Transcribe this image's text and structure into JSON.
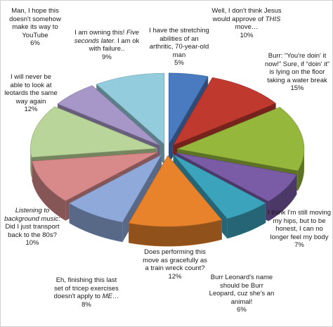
{
  "chart_data": {
    "type": "pie",
    "style": "exploded 3d",
    "slices": [
      {
        "label": "I have the stretching abilities of an arthritic, 70-year-old man",
        "value": 5,
        "pct": "5%",
        "color": "#4a7bc0"
      },
      {
        "label": "Well, I don't think Jesus would approve of THIS move…",
        "value": 10,
        "pct": "10%",
        "color": "#c0392f"
      },
      {
        "label": "Burr: “You're doin' it now!” Sure, if “doin' it” is lying on the floor taking a water break",
        "value": 15,
        "pct": "15%",
        "color": "#95b83c"
      },
      {
        "label": "I think I'm still moving my hips, but to be honest, I can no longer feel my body",
        "value": 7,
        "pct": "7%",
        "color": "#7a5ba6"
      },
      {
        "label": "Burr Leonard's name should be Burr Leopard, cuz she's an animal!",
        "value": 6,
        "pct": "6%",
        "color": "#3ca3bd"
      },
      {
        "label": "Does performing this move as gracefully as a train wreck count?",
        "value": 12,
        "pct": "12%",
        "color": "#e8832c"
      },
      {
        "label": "Eh, finishing this last set of tricep exercises doesn't apply to ME…",
        "value": 8,
        "pct": "8%",
        "color": "#8ea9da"
      },
      {
        "label": "Listening to background music: Did I just transport back to the 80s?",
        "value": 10,
        "pct": "10%",
        "color": "#d8898a"
      },
      {
        "label": "I will never be able to look at leotards the same way again",
        "value": 12,
        "pct": "12%",
        "color": "#bad59a"
      },
      {
        "label": "Man, I hope this doesn't somehow make its way to YouTube",
        "value": 6,
        "pct": "6%",
        "color": "#a697c8"
      },
      {
        "label": "I am owning this! Five seconds later. I am ok with failure..",
        "value": 9,
        "pct": "9%",
        "color": "#93ccdc"
      }
    ]
  },
  "labels": {
    "s0": {
      "a": "I have the stretching abilities of an arthritic, 70-year-old man",
      "pct": "5%"
    },
    "s1": {
      "a": "Well, I don't think Jesus would approve of ",
      "em": "THIS",
      "b": " move…",
      "pct": "10%"
    },
    "s2": {
      "a": "Burr: “You're doin' it now!” Sure, if “doin' it” is lying on the floor taking a water break",
      "pct": "15%"
    },
    "s3": {
      "a": "I think I'm still moving my hips, but to be honest, I can no longer feel my body",
      "pct": "7%"
    },
    "s4": {
      "a": "Burr Leonard's name should be Burr Leopard, cuz she's an animal!",
      "pct": "6%"
    },
    "s5": {
      "a": "Does performing this move as gracefully as a train wreck count?",
      "pct": "12%"
    },
    "s6": {
      "a": "Eh, finishing this last set of tricep exercises doesn't apply to ",
      "em": "ME",
      "b": "…",
      "pct": "8%"
    },
    "s7": {
      "em": "Listening to background music",
      "b": ": Did I just transport back to the 80s?",
      "pct": "10%"
    },
    "s8": {
      "a": "I will never be able to look at leotards the same way again",
      "pct": "12%"
    },
    "s9": {
      "a": "Man, I hope this doesn't somehow make its way to YouTube",
      "pct": "6%"
    },
    "s10": {
      "a": "I am owning this! ",
      "em": "Five seconds later.",
      "b": " I am ok with failure..",
      "pct": "9%"
    }
  }
}
